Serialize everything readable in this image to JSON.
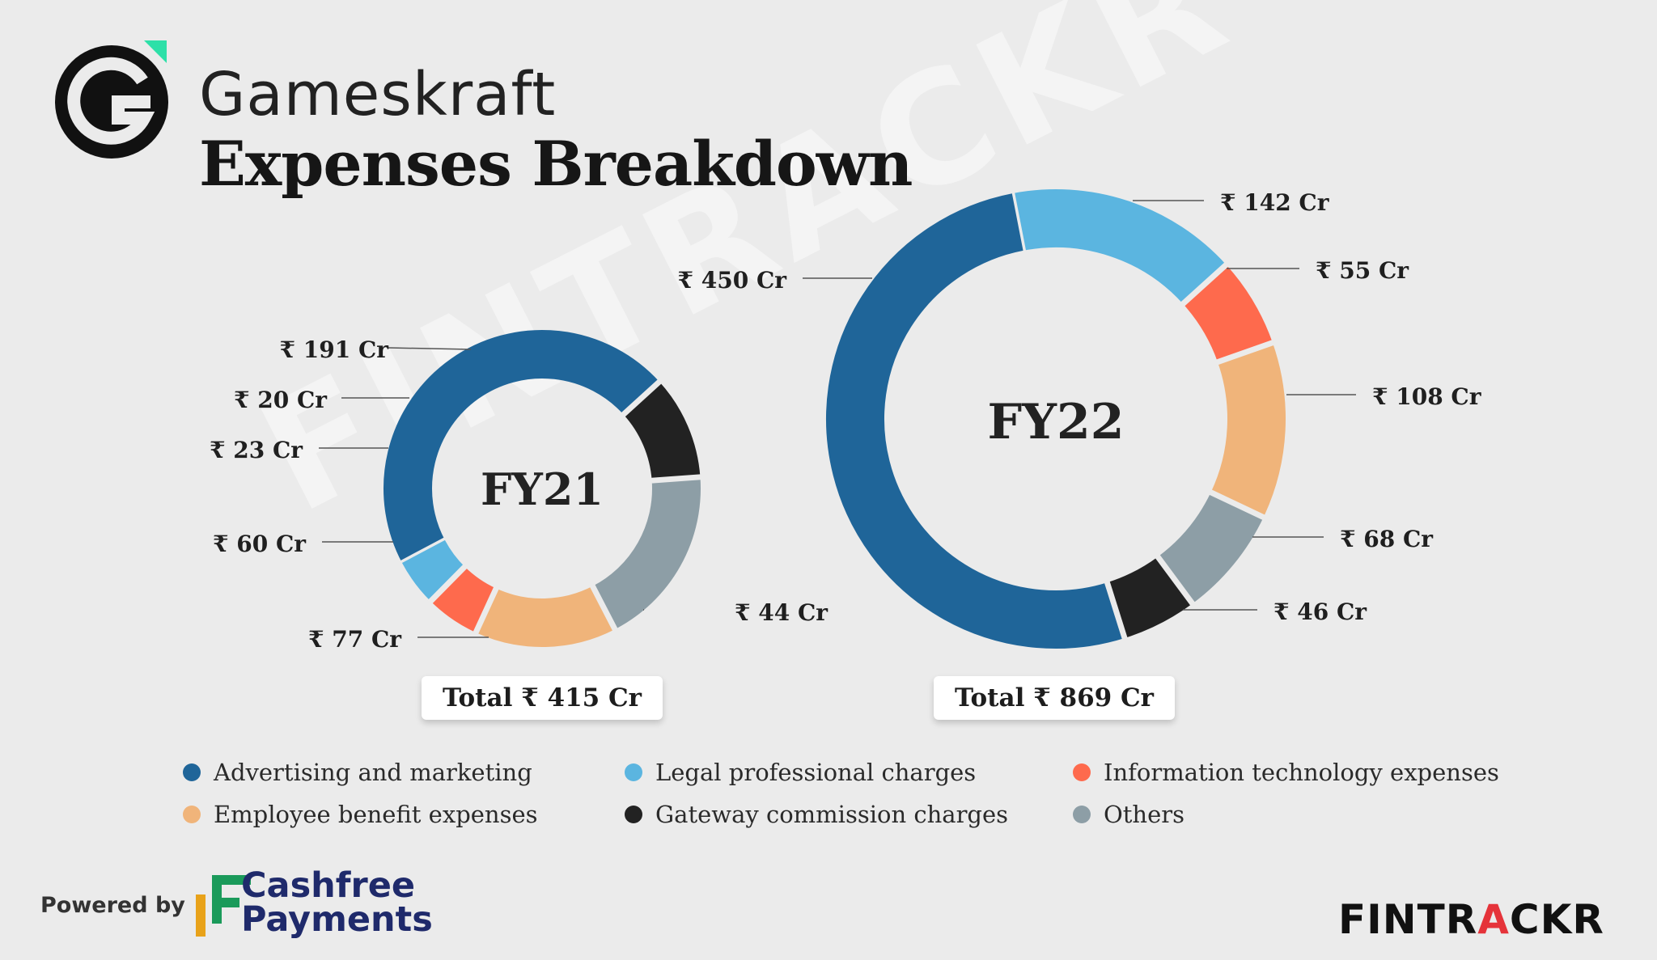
{
  "header": {
    "brand": "Gameskraft",
    "title": "Expenses Breakdown"
  },
  "watermark": "FINTRACKR",
  "colors": {
    "advertising": "#1f6599",
    "legal": "#5bb5e0",
    "it": "#fe6a4d",
    "employee": "#f0b47a",
    "gateway": "#222222",
    "others": "#8d9ea6"
  },
  "legend": [
    {
      "label": "Advertising and marketing",
      "color": "#1f6599"
    },
    {
      "label": "Legal professional charges",
      "color": "#5bb5e0"
    },
    {
      "label": "Information technology expenses",
      "color": "#fe6a4d"
    },
    {
      "label": "Employee benefit expenses",
      "color": "#f0b47a"
    },
    {
      "label": "Gateway commission charges",
      "color": "#222222"
    },
    {
      "label": "Others",
      "color": "#8d9ea6"
    }
  ],
  "chart_data": [
    {
      "type": "pie",
      "center_label": "FY21",
      "total_label": "Total ₹ 415 Cr",
      "unit": "Cr",
      "slices": [
        {
          "name": "Advertising and marketing",
          "value": 191,
          "label": "₹ 191 Cr",
          "color": "#1f6599"
        },
        {
          "name": "Gateway commission charges",
          "value": 44,
          "label": "₹ 44 Cr",
          "color": "#222222"
        },
        {
          "name": "Others",
          "value": 77,
          "label": "₹ 77 Cr",
          "color": "#8d9ea6"
        },
        {
          "name": "Employee benefit expenses",
          "value": 60,
          "label": "₹ 60 Cr",
          "color": "#f0b47a"
        },
        {
          "name": "Information technology expenses",
          "value": 23,
          "label": "₹ 23 Cr",
          "color": "#fe6a4d"
        },
        {
          "name": "Legal professional charges",
          "value": 20,
          "label": "₹ 20 Cr",
          "color": "#5bb5e0"
        }
      ]
    },
    {
      "type": "pie",
      "center_label": "FY22",
      "total_label": "Total ₹ 869 Cr",
      "unit": "Cr",
      "slices": [
        {
          "name": "Legal professional charges",
          "value": 142,
          "label": "₹ 142 Cr",
          "color": "#5bb5e0"
        },
        {
          "name": "Information technology expenses",
          "value": 55,
          "label": "₹ 55 Cr",
          "color": "#fe6a4d"
        },
        {
          "name": "Employee benefit expenses",
          "value": 108,
          "label": "₹ 108 Cr",
          "color": "#f0b47a"
        },
        {
          "name": "Others",
          "value": 68,
          "label": "₹ 68 Cr",
          "color": "#8d9ea6"
        },
        {
          "name": "Gateway commission charges",
          "value": 46,
          "label": "₹ 46 Cr",
          "color": "#222222"
        },
        {
          "name": "Advertising and marketing",
          "value": 450,
          "label": "₹ 450 Cr",
          "color": "#1f6599"
        }
      ]
    }
  ],
  "footer": {
    "powered_by": "Powered by",
    "partner_line1": "Cashfree",
    "partner_line2": "Payments",
    "fintrackr_a": "FINTR",
    "fintrackr_b": "A",
    "fintrackr_c": "CKR"
  }
}
